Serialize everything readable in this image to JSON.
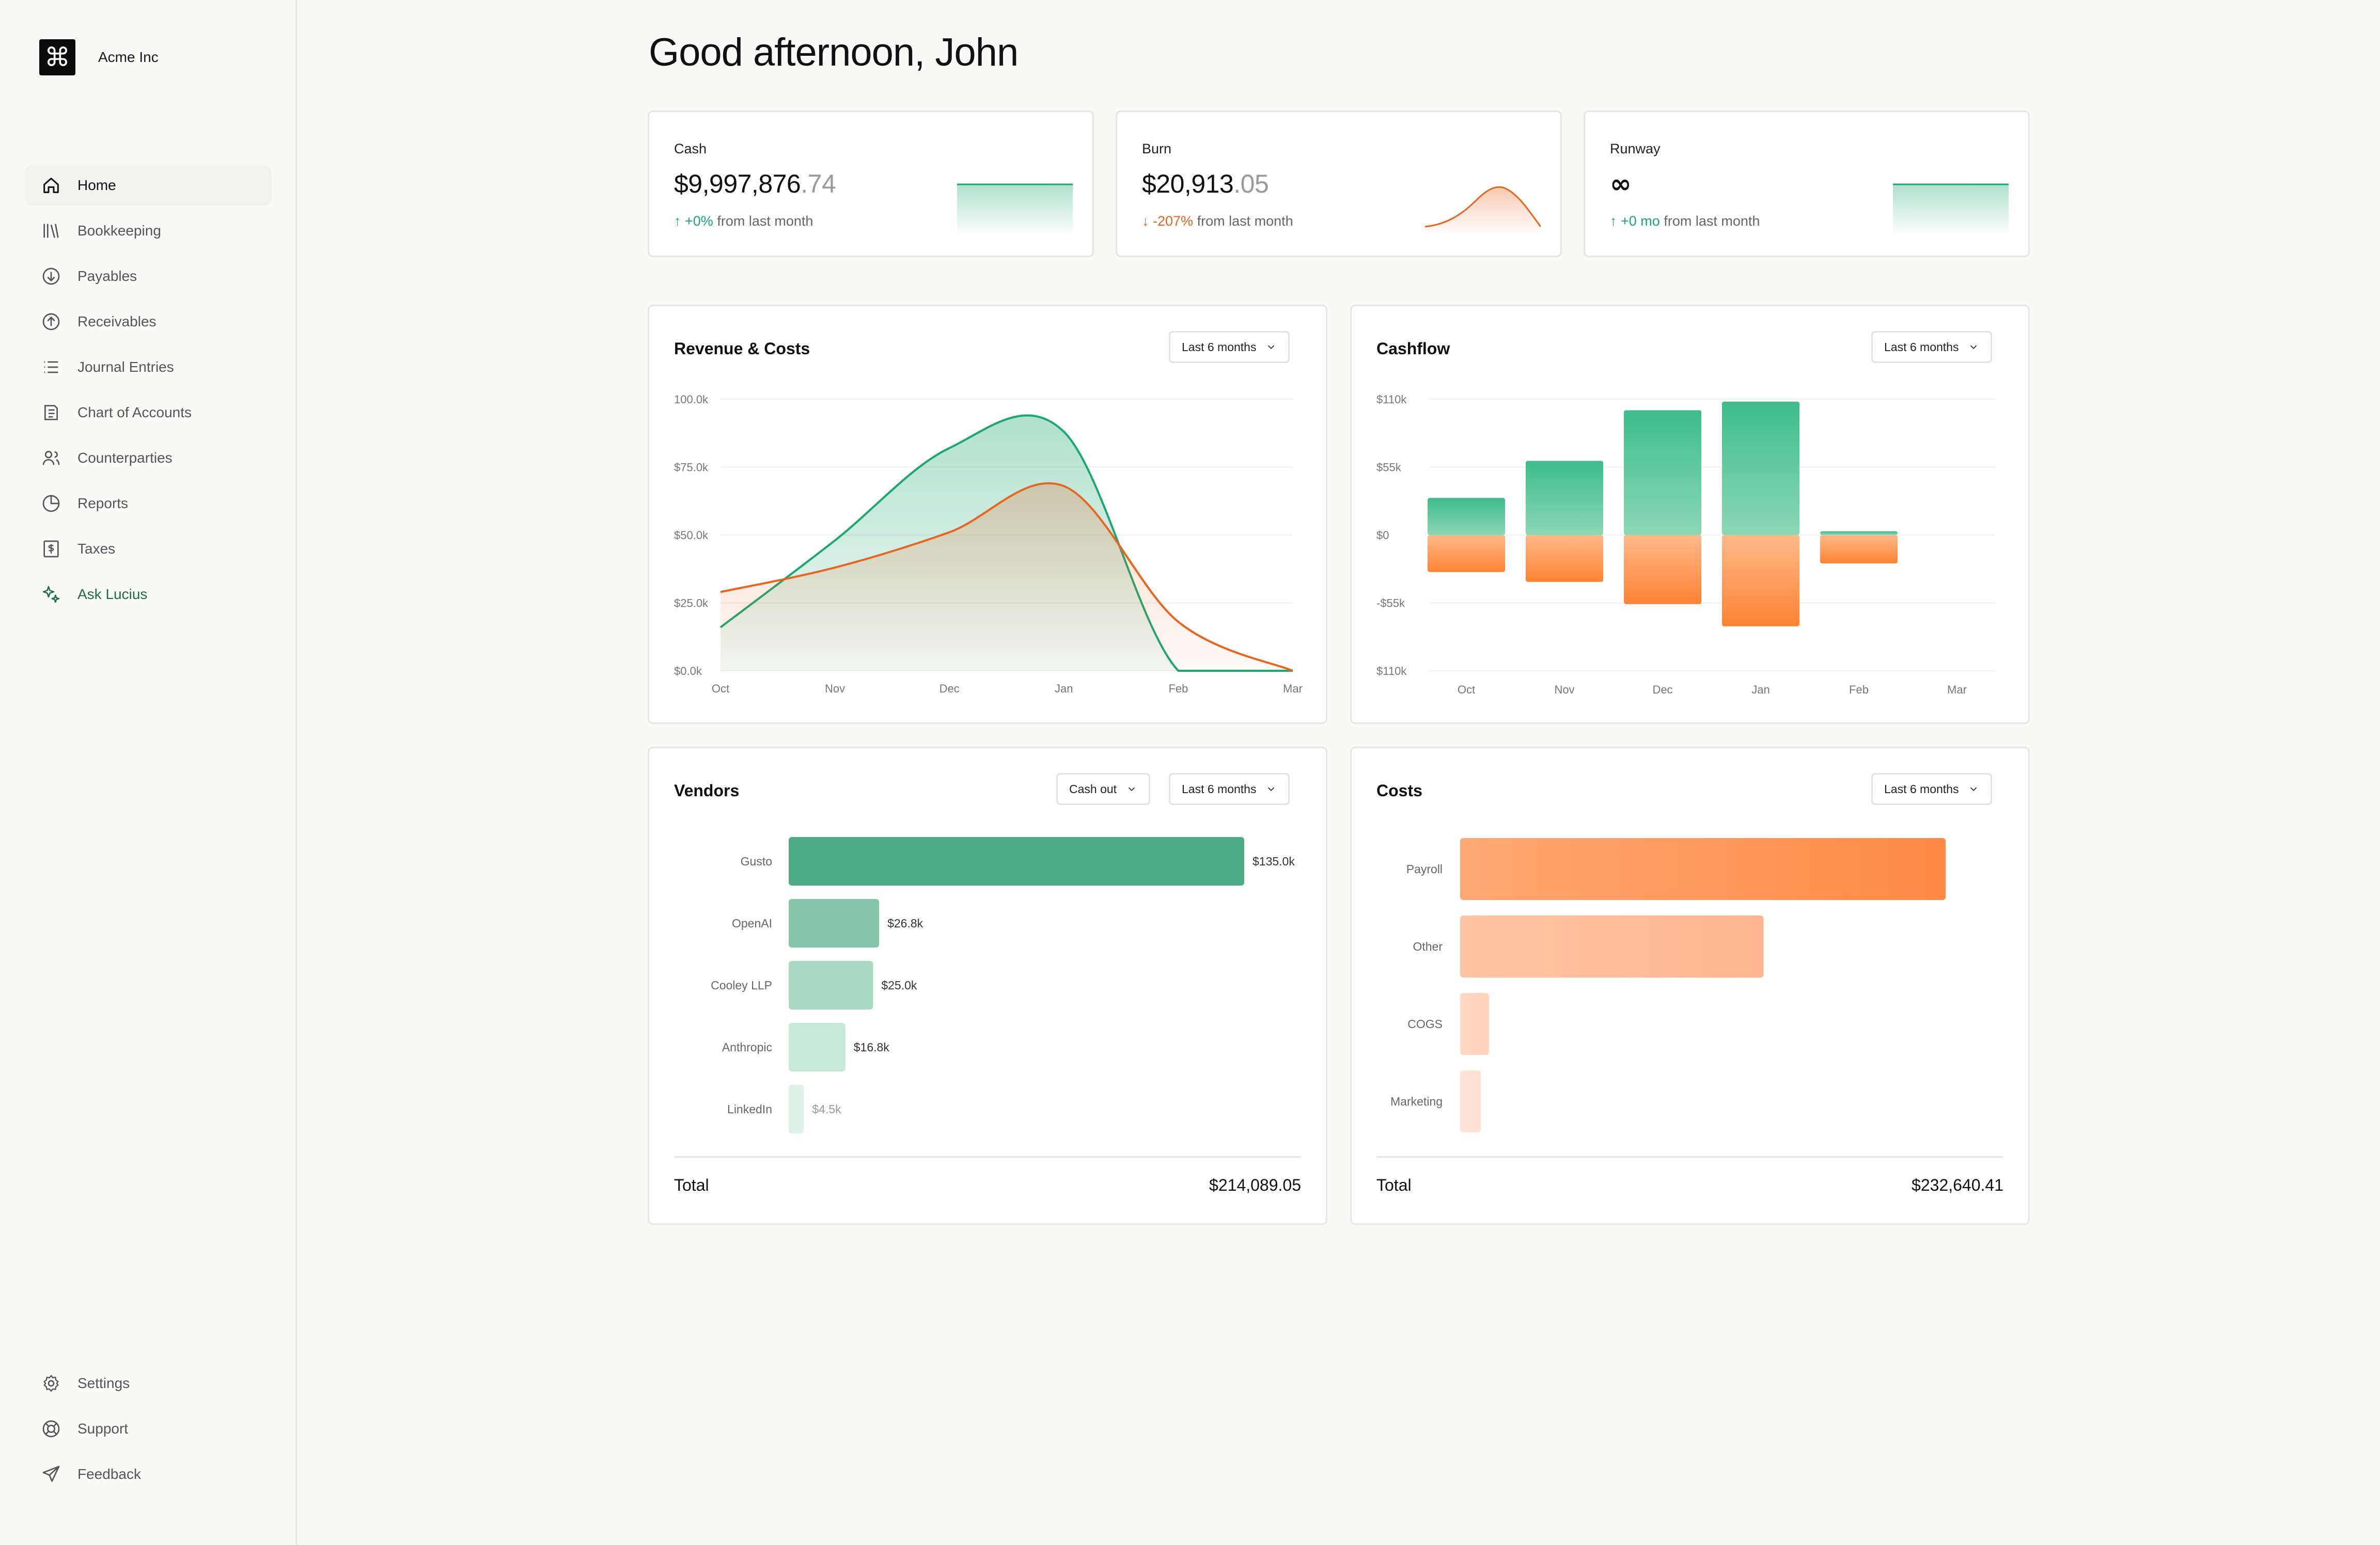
{
  "brand": {
    "name": "Acme Inc",
    "logo_glyph": "⌘"
  },
  "sidebar": {
    "items": [
      {
        "label": "Home",
        "icon": "home-icon",
        "active": true
      },
      {
        "label": "Bookkeeping",
        "icon": "books-icon"
      },
      {
        "label": "Payables",
        "icon": "arrow-down-circle-icon"
      },
      {
        "label": "Receivables",
        "icon": "arrow-up-circle-icon"
      },
      {
        "label": "Journal Entries",
        "icon": "list-icon"
      },
      {
        "label": "Chart of Accounts",
        "icon": "ledger-icon"
      },
      {
        "label": "Counterparties",
        "icon": "users-icon"
      },
      {
        "label": "Reports",
        "icon": "pie-chart-icon"
      },
      {
        "label": "Taxes",
        "icon": "dollar-receipt-icon"
      },
      {
        "label": "Ask Lucius",
        "icon": "sparkles-icon",
        "accent": true
      }
    ],
    "bottom_items": [
      {
        "label": "Settings",
        "icon": "gear-icon"
      },
      {
        "label": "Support",
        "icon": "lifebuoy-icon"
      },
      {
        "label": "Feedback",
        "icon": "send-icon"
      }
    ]
  },
  "page": {
    "title": "Good afternoon, John"
  },
  "metrics": {
    "cash": {
      "label": "Cash",
      "value_main": "$9,997,876",
      "value_dec": ".74",
      "change": "+0%",
      "change_suffix": "from last month",
      "direction": "up"
    },
    "burn": {
      "label": "Burn",
      "value_main": "$20,913",
      "value_dec": ".05",
      "change": "-207%",
      "change_suffix": "from last month",
      "direction": "down"
    },
    "runway": {
      "label": "Runway",
      "value_main": "∞",
      "value_dec": "",
      "change": "+0 mo",
      "change_suffix": "from last month",
      "direction": "up"
    }
  },
  "panels": {
    "revenue": {
      "title": "Revenue & Costs",
      "range": "Last 6 months"
    },
    "cashflow": {
      "title": "Cashflow",
      "range": "Last 6 months"
    },
    "vendors": {
      "title": "Vendors",
      "filter": "Cash out",
      "range": "Last 6 months",
      "total_label": "Total",
      "total_value": "$214,089.05"
    },
    "costs": {
      "title": "Costs",
      "range": "Last 6 months",
      "total_label": "Total",
      "total_value": "$232,640.41"
    }
  },
  "colors": {
    "green": "#1aa772",
    "orange": "#e8651f",
    "accent_text": "#1e6b46"
  },
  "chart_data": [
    {
      "type": "area",
      "title": "Revenue & Costs",
      "categories": [
        "Oct",
        "Nov",
        "Dec",
        "Jan",
        "Feb",
        "Mar"
      ],
      "y_ticks": [
        "$0.0k",
        "$25.0k",
        "$50.0k",
        "$75.0k",
        "100.0k"
      ],
      "ylim": [
        0,
        100000
      ],
      "series": [
        {
          "values": [
            16000,
            48000,
            82000,
            88000,
            0,
            0
          ]
        },
        {
          "values": [
            29000,
            38000,
            51000,
            68000,
            18000,
            0
          ]
        }
      ]
    },
    {
      "type": "bar",
      "title": "Cashflow",
      "categories": [
        "Oct",
        "Nov",
        "Dec",
        "Jan",
        "Feb",
        "Mar"
      ],
      "y_ticks": [
        "$110k",
        "$55k",
        "$0",
        "-$55k",
        "$110k"
      ],
      "ylim": [
        -110000,
        110000
      ],
      "series": [
        {
          "values": [
            30000,
            60000,
            101000,
            108000,
            3000,
            0
          ]
        },
        {
          "values": [
            -30000,
            -38000,
            -56000,
            -74000,
            -23000,
            0
          ]
        }
      ]
    },
    {
      "type": "bar",
      "title": "Vendors",
      "categories": [
        "Gusto",
        "OpenAI",
        "Cooley LLP",
        "Anthropic",
        "LinkedIn"
      ],
      "values": [
        135000,
        26800,
        25000,
        16800,
        4500
      ],
      "labels": [
        "$135.0k",
        "$26.8k",
        "$25.0k",
        "$16.8k",
        "$4.5k"
      ]
    },
    {
      "type": "bar",
      "title": "Costs",
      "categories": [
        "Payroll",
        "Other",
        "COGS",
        "Marketing"
      ],
      "values": [
        128000,
        80000,
        7600,
        5000
      ]
    }
  ]
}
